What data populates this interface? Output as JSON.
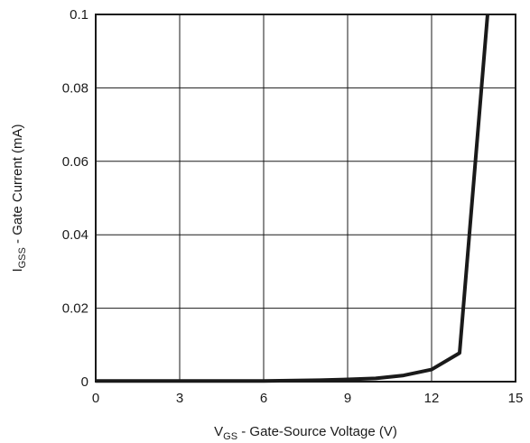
{
  "chart_data": {
    "type": "line",
    "title": "",
    "xlabel": {
      "symbol": "V",
      "subscript": "GS",
      "text": " - Gate-Source Voltage (V)"
    },
    "ylabel": {
      "symbol": "I",
      "subscript": "GSS",
      "text": " - Gate Current (mA)"
    },
    "xlim": [
      0,
      15
    ],
    "ylim": [
      0,
      0.1
    ],
    "x_ticks": [
      0,
      3,
      6,
      9,
      12,
      15
    ],
    "x_tick_labels": [
      "0",
      "3",
      "6",
      "9",
      "12",
      "15"
    ],
    "y_ticks": [
      0,
      0.02,
      0.04,
      0.06,
      0.08,
      0.1
    ],
    "y_tick_labels": [
      "0",
      "0.02",
      "0.04",
      "0.06",
      "0.08",
      "0.1"
    ],
    "grid": true,
    "legend": "none",
    "line_color": "#1a1a1a",
    "series": [
      {
        "x": [
          0,
          2,
          4,
          6,
          8,
          9,
          10,
          11,
          12,
          13,
          14
        ],
        "y": [
          0.0002,
          0.0002,
          0.0002,
          0.0002,
          0.0004,
          0.0006,
          0.0009,
          0.0017,
          0.0033,
          0.0078,
          0.1
        ]
      }
    ]
  }
}
